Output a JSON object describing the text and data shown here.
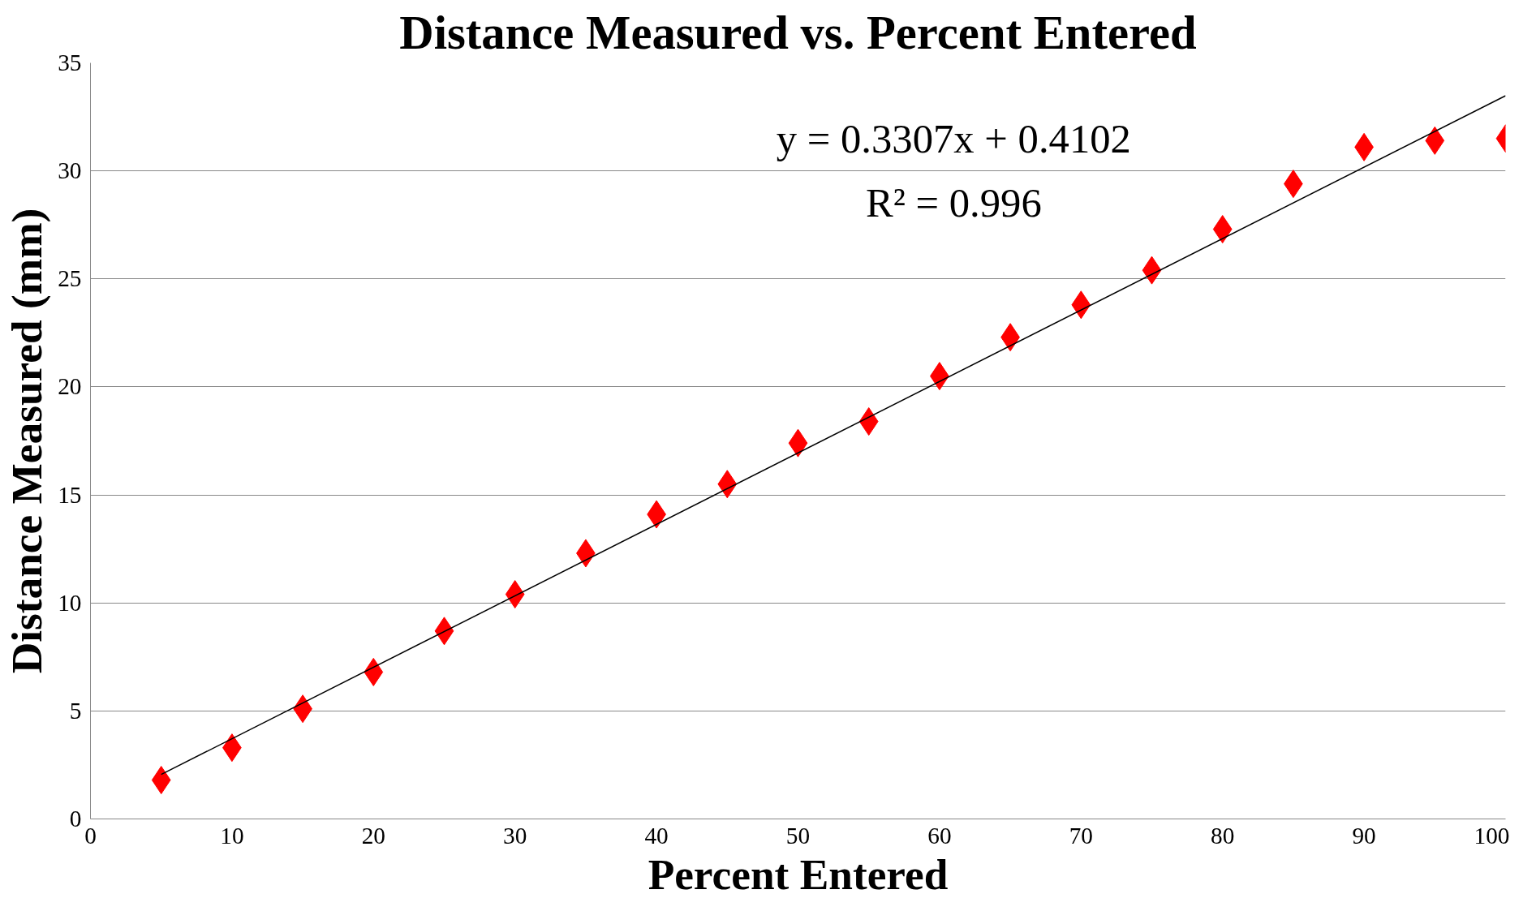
{
  "chart_data": {
    "type": "scatter",
    "title": "Distance Measured vs. Percent Entered",
    "xlabel": "Percent Entered",
    "ylabel": "Distance Measured (mm)",
    "annotations": [
      "y = 0.3307x + 0.4102",
      "R² = 0.996"
    ],
    "x": [
      5,
      10,
      15,
      20,
      25,
      30,
      35,
      40,
      45,
      50,
      55,
      60,
      65,
      70,
      75,
      80,
      85,
      90,
      95,
      100
    ],
    "series": [
      {
        "color": "#ff0000",
        "marker": "diamond",
        "values": [
          1.8,
          3.3,
          5.1,
          6.8,
          8.7,
          10.4,
          12.3,
          14.1,
          15.5,
          17.4,
          18.4,
          20.5,
          22.3,
          23.8,
          25.4,
          27.3,
          29.4,
          31.1,
          31.4,
          31.5
        ]
      },
      {
        "type": "line",
        "color": "#000000",
        "x": [
          5,
          100
        ],
        "values": [
          2.06,
          33.48
        ]
      }
    ],
    "xlim": [
      0,
      100
    ],
    "ylim": [
      0,
      35
    ],
    "xticks": [
      0,
      10,
      20,
      30,
      40,
      50,
      60,
      70,
      80,
      90,
      100
    ],
    "yticks": [
      0,
      5,
      10,
      15,
      20,
      25,
      30,
      35
    ],
    "grid": "y"
  }
}
